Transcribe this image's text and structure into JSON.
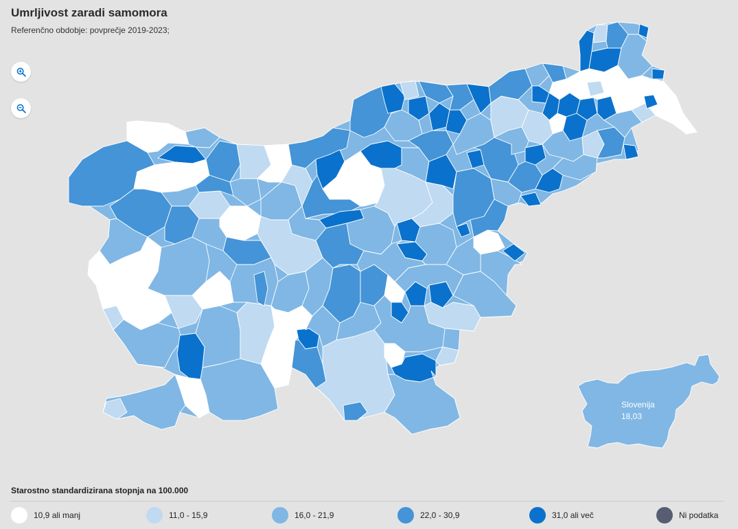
{
  "header": {
    "title": "Umrljivost zaradi samomora",
    "subtitle": "Referenčno obdobje: povprečje 2019-2023;"
  },
  "controls": {
    "zoom_in_icon": "zoom-in-icon",
    "zoom_out_icon": "zoom-out-icon"
  },
  "colors": {
    "c1": "#ffffff",
    "c2": "#bfdaf1",
    "c3": "#80b7e4",
    "c4": "#4494d7",
    "c5": "#0a72cc",
    "na": "#575e72",
    "background": "#e3e3e3"
  },
  "national_inset": {
    "name": "Slovenija",
    "value": "18,03",
    "class": "c3"
  },
  "legend": {
    "title": "Starostno standardizirana stopnja na 100.000",
    "items": [
      {
        "label": "10,9 ali manj",
        "class": "c1"
      },
      {
        "label": "11,0 - 15,9",
        "class": "c2"
      },
      {
        "label": "16,0 - 21,9",
        "class": "c3"
      },
      {
        "label": "22,0 - 30,9",
        "class": "c4"
      },
      {
        "label": "31,0 ali več",
        "class": "c5"
      },
      {
        "label": "Ni podatka",
        "class": "na"
      }
    ]
  }
}
